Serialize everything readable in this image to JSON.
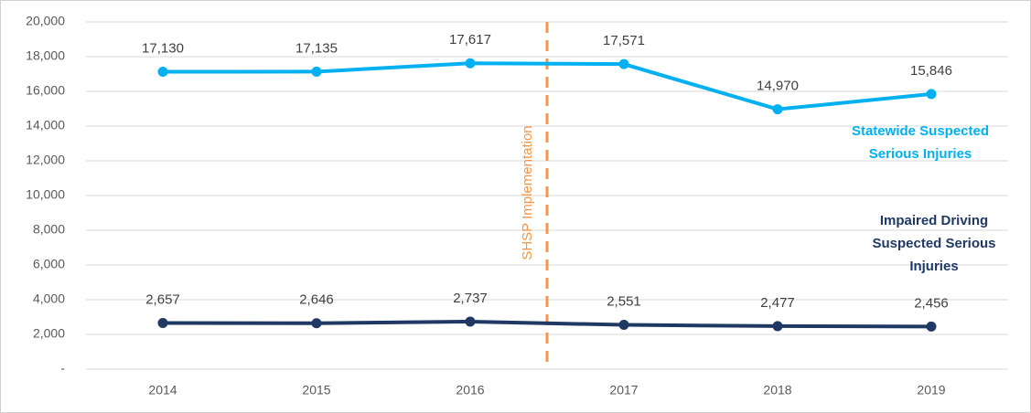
{
  "chart_data": {
    "type": "line",
    "categories": [
      "2014",
      "2015",
      "2016",
      "2017",
      "2018",
      "2019"
    ],
    "series": [
      {
        "name": "Statewide Suspected Serious Injuries",
        "color": "#00b0f0",
        "values": [
          17130,
          17135,
          17617,
          17571,
          14970,
          15846
        ],
        "value_labels": [
          "17,130",
          "17,135",
          "17,617",
          "17,571",
          "14,970",
          "15,846"
        ]
      },
      {
        "name": "Impaired Driving Suspected Serious Injuries",
        "color": "#203864",
        "values": [
          2657,
          2646,
          2737,
          2551,
          2477,
          2456
        ],
        "value_labels": [
          "2,657",
          "2,646",
          "2,737",
          "2,551",
          "2,477",
          "2,456"
        ]
      }
    ],
    "ylim": [
      0,
      20000
    ],
    "yticks": [
      {
        "value": 0,
        "label": "-"
      },
      {
        "value": 2000,
        "label": "2,000"
      },
      {
        "value": 4000,
        "label": "4,000"
      },
      {
        "value": 6000,
        "label": "6,000"
      },
      {
        "value": 8000,
        "label": "8,000"
      },
      {
        "value": 10000,
        "label": "10,000"
      },
      {
        "value": 12000,
        "label": "12,000"
      },
      {
        "value": 14000,
        "label": "14,000"
      },
      {
        "value": 16000,
        "label": "16,000"
      },
      {
        "value": 18000,
        "label": "18,000"
      },
      {
        "value": 20000,
        "label": "20,000"
      }
    ],
    "grid": true,
    "annotation": {
      "text": "SHSP Implementation",
      "color": "#f79646"
    }
  }
}
